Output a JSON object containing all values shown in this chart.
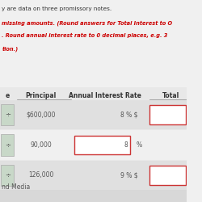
{
  "title_line1": "y are data on three promissory notes.",
  "instruction_line1": "missing amounts. (Round answers for Total Interest to O",
  "instruction_line2": ". Round annual interest rate to 0 decimal places, e.g. 3",
  "instruction_line3": "tion.)",
  "footer": "nd Media",
  "bg_color": "#f0f0f0",
  "header_color": "#333333",
  "text_color": "#555555",
  "red_color": "#cc0000",
  "input_border_color": "#cc3333",
  "rows": [
    {
      "principal": "$600,000",
      "rate_static": "8 % $",
      "rate_input_val": null,
      "has_total_box": true,
      "row_bg": "#e0e0e0"
    },
    {
      "principal": "90,000",
      "rate_static": null,
      "rate_input_val": "8",
      "has_total_box": false,
      "row_bg": "#f0f0f0"
    },
    {
      "principal": "126,000",
      "rate_static": "9 % $",
      "rate_input_val": null,
      "has_total_box": true,
      "row_bg": "#e0e0e0"
    }
  ]
}
